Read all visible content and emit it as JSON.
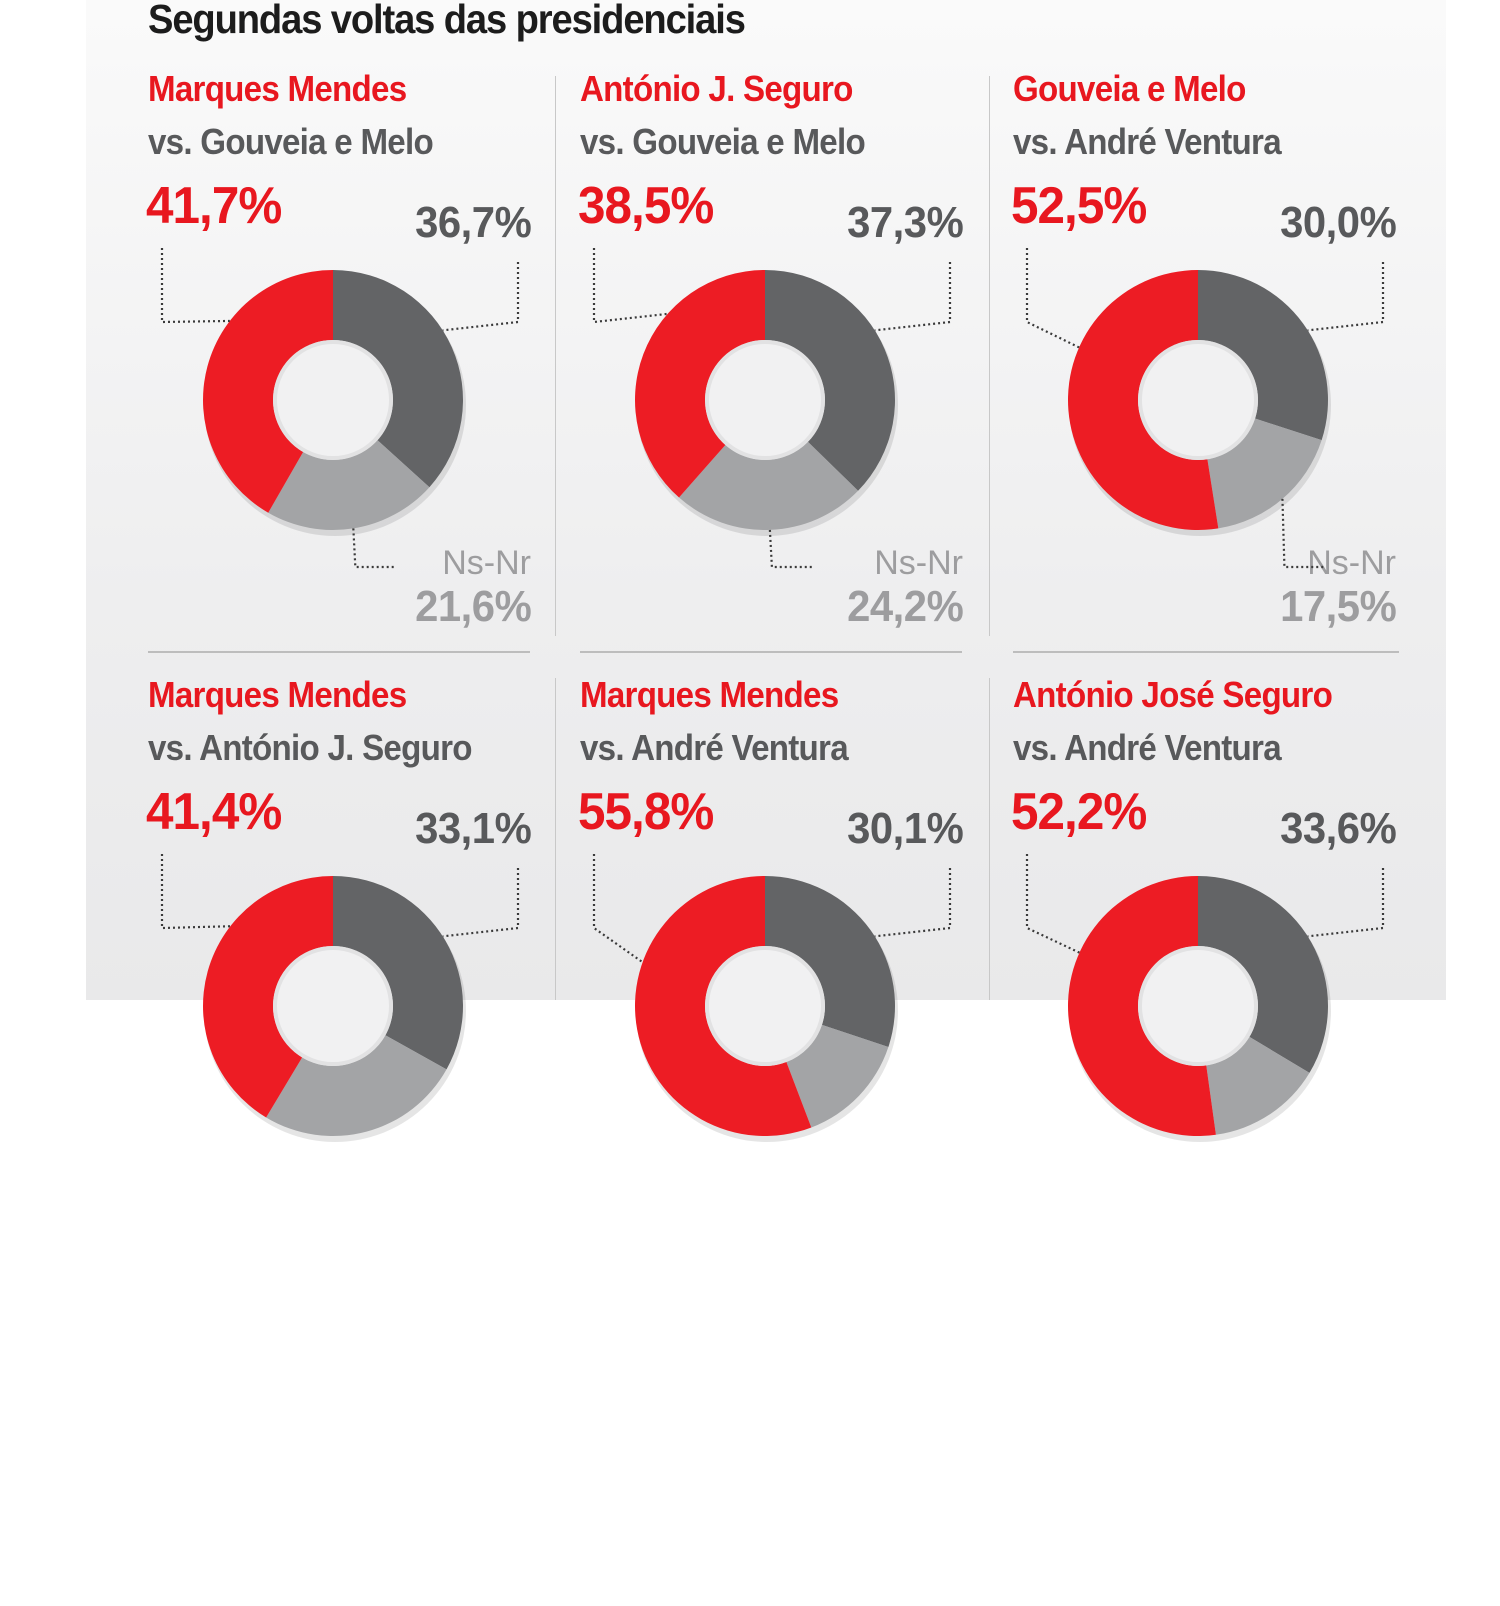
{
  "title": "Segundas voltas das presidenciais",
  "colors": {
    "candidate": "#ed1c24",
    "opponent": "#636466",
    "undecided": "#a3a4a6",
    "candidate_text": "#e8171f",
    "opponent_text": "#58595b",
    "undecided_text": "#9d9d9f"
  },
  "chart_data": {
    "type": "pie",
    "variant": "donut",
    "title": "Segundas voltas das presidenciais",
    "charts": [
      {
        "candidate": "Marques Mendes",
        "opponent_line": "vs. Gouveia e Melo",
        "opponent": "Gouveia e Melo",
        "candidate_pct": 41.7,
        "opponent_pct": 36.7,
        "undecided_pct": 21.6,
        "candidate_label": "41,7%",
        "opponent_label": "36,7%",
        "undecided_name": "Ns-Nr",
        "undecided_label": "21,6%"
      },
      {
        "candidate": "António J. Seguro",
        "opponent_line": "vs. Gouveia e Melo",
        "opponent": "Gouveia e Melo",
        "candidate_pct": 38.5,
        "opponent_pct": 37.3,
        "undecided_pct": 24.2,
        "candidate_label": "38,5%",
        "opponent_label": "37,3%",
        "undecided_name": "Ns-Nr",
        "undecided_label": "24,2%"
      },
      {
        "candidate": "Gouveia e Melo",
        "opponent_line": "vs. André Ventura",
        "opponent": "André Ventura",
        "candidate_pct": 52.5,
        "opponent_pct": 30.0,
        "undecided_pct": 17.5,
        "candidate_label": "52,5%",
        "opponent_label": "30,0%",
        "undecided_name": "Ns-Nr",
        "undecided_label": "17,5%"
      },
      {
        "candidate": "Marques Mendes",
        "opponent_line": "vs. António J. Seguro",
        "opponent": "António J. Seguro",
        "candidate_pct": 41.4,
        "opponent_pct": 33.1,
        "undecided_pct": 25.5,
        "candidate_label": "41,4%",
        "opponent_label": "33,1%"
      },
      {
        "candidate": "Marques Mendes",
        "opponent_line": "vs. André Ventura",
        "opponent": "André Ventura",
        "candidate_pct": 55.8,
        "opponent_pct": 30.1,
        "undecided_pct": 14.1,
        "candidate_label": "55,8%",
        "opponent_label": "30,1%"
      },
      {
        "candidate": "António José Seguro",
        "opponent_line": "vs. André Ventura",
        "opponent": "André Ventura",
        "candidate_pct": 52.2,
        "opponent_pct": 33.6,
        "undecided_pct": 14.2,
        "candidate_label": "52,2%",
        "opponent_label": "33,6%"
      }
    ]
  }
}
